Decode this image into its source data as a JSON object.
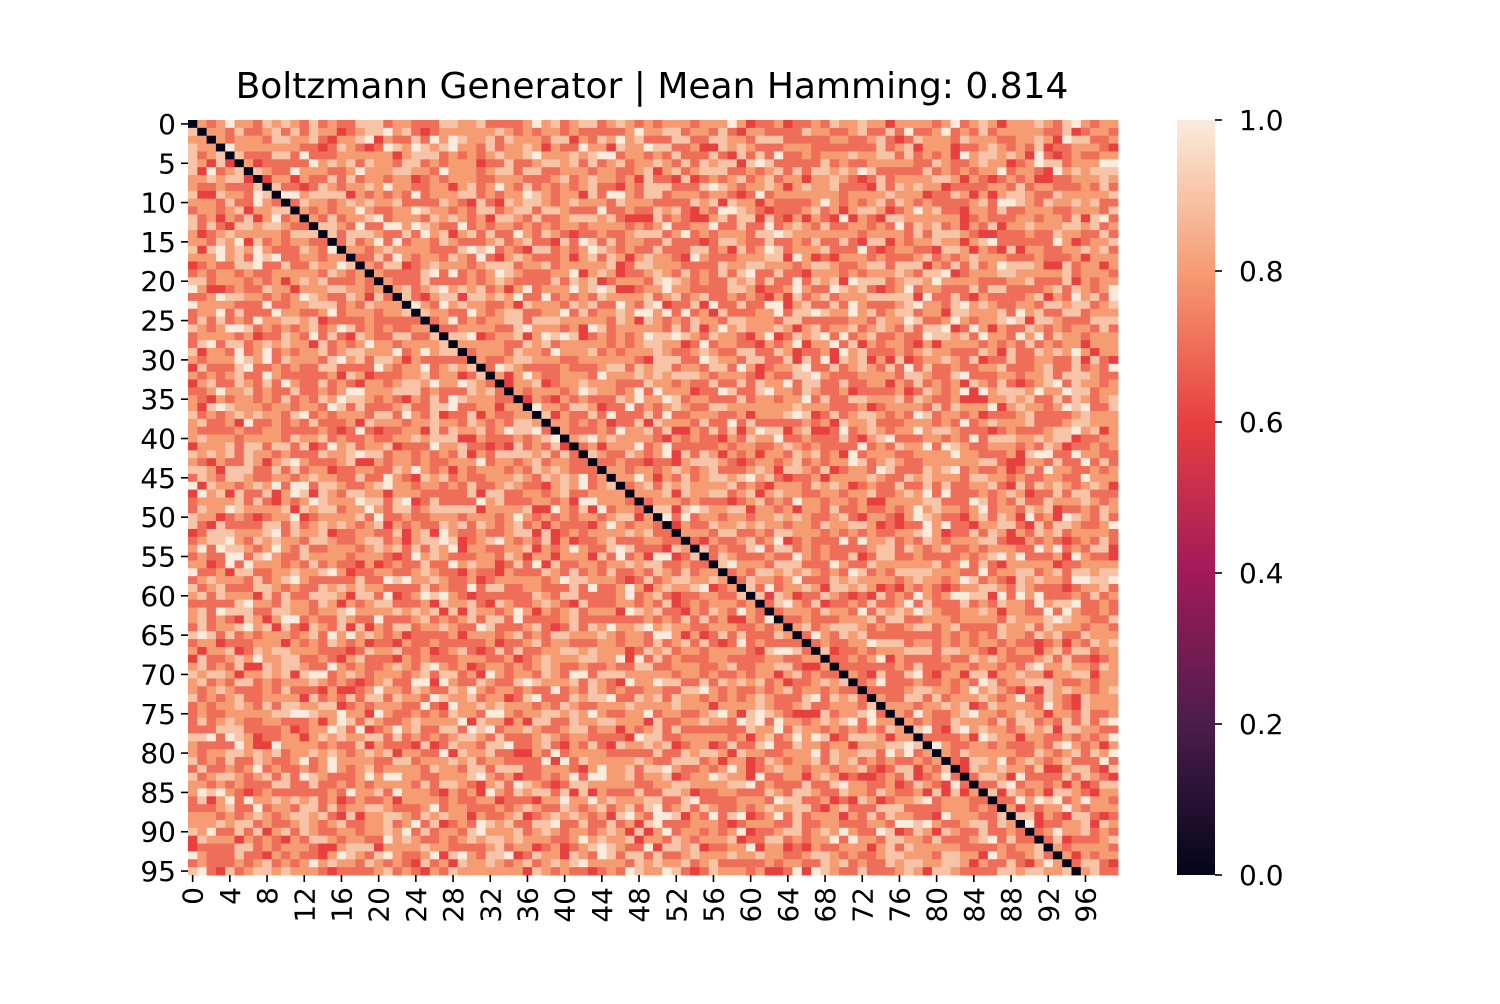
{
  "chart_data": {
    "type": "heatmap",
    "title": "Boltzmann Generator | Mean Hamming: 0.814",
    "xlabel": "",
    "ylabel": "",
    "rows": 96,
    "cols": 100,
    "y_tick_labels": [
      "0",
      "5",
      "10",
      "15",
      "20",
      "25",
      "30",
      "35",
      "40",
      "45",
      "50",
      "55",
      "60",
      "65",
      "70",
      "75",
      "80",
      "85",
      "90",
      "95"
    ],
    "x_tick_labels": [
      "0",
      "4",
      "8",
      "12",
      "16",
      "20",
      "24",
      "28",
      "32",
      "36",
      "40",
      "44",
      "48",
      "52",
      "56",
      "60",
      "64",
      "68",
      "72",
      "76",
      "80",
      "84",
      "88",
      "92",
      "96"
    ],
    "value_levels": [
      0.6,
      0.7,
      0.8,
      0.9,
      1.0
    ],
    "level_weights": [
      0.06,
      0.32,
      0.36,
      0.2,
      0.06
    ],
    "diagonal_value": 0.0,
    "colorbar": {
      "min": 0.0,
      "max": 1.0,
      "tick_labels": [
        "0.0",
        "0.2",
        "0.4",
        "0.6",
        "0.8",
        "1.0"
      ],
      "colormap": "rocket",
      "colors": [
        "#03051a",
        "#4c1d4b",
        "#a11a5b",
        "#e83f3f",
        "#f69c73",
        "#faebdd"
      ]
    },
    "mean_value": 0.814
  }
}
